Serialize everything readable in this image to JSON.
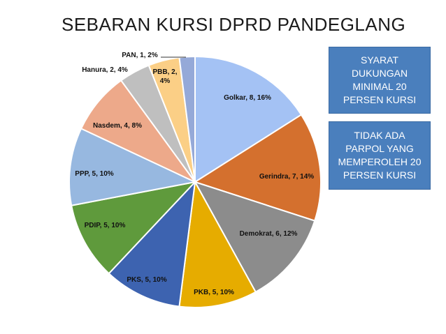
{
  "title": "SEBARAN KURSI DPRD PANDEGLANG",
  "notes": [
    "SYARAT DUKUNGAN MINIMAL 20 PERSEN KURSI",
    "TIDAK ADA PARPOL YANG MEMPEROLEH 20 PERSEN KURSI"
  ],
  "chart_data": {
    "type": "pie",
    "title": "SEBARAN KURSI DPRD PANDEGLANG",
    "slices": [
      {
        "label": "Golkar, 8, 16%",
        "name": "Golkar",
        "value": 8,
        "percent": 16,
        "color": "#a4c2f4"
      },
      {
        "label": "Gerindra, 7, 14%",
        "name": "Gerindra",
        "value": 7,
        "percent": 14,
        "color": "#d4702e"
      },
      {
        "label": "Demokrat, 6, 12%",
        "name": "Demokrat",
        "value": 6,
        "percent": 12,
        "color": "#8c8c8c"
      },
      {
        "label": "PKB, 5, 10%",
        "name": "PKB",
        "value": 5,
        "percent": 10,
        "color": "#e6ac00"
      },
      {
        "label": "PKS, 5, 10%",
        "name": "PKS",
        "value": 5,
        "percent": 10,
        "color": "#3d63b0"
      },
      {
        "label": "PDIP, 5, 10%",
        "name": "PDIP",
        "value": 5,
        "percent": 10,
        "color": "#5f9a3c"
      },
      {
        "label": "PPP, 5, 10%",
        "name": "PPP",
        "value": 5,
        "percent": 10,
        "color": "#97b8e0"
      },
      {
        "label": "Nasdem, 4, 8%",
        "name": "Nasdem",
        "value": 4,
        "percent": 8,
        "color": "#eda98a"
      },
      {
        "label": "Hanura, 2, 4%",
        "name": "Hanura",
        "value": 2,
        "percent": 4,
        "color": "#bfbfbf"
      },
      {
        "label": "PBB, 2, 4%",
        "name": "PBB",
        "value": 2,
        "percent": 4,
        "color": "#fbcf86"
      },
      {
        "label": "PAN, 1, 2%",
        "name": "PAN",
        "value": 1,
        "percent": 2,
        "color": "#95a9d8"
      }
    ]
  }
}
